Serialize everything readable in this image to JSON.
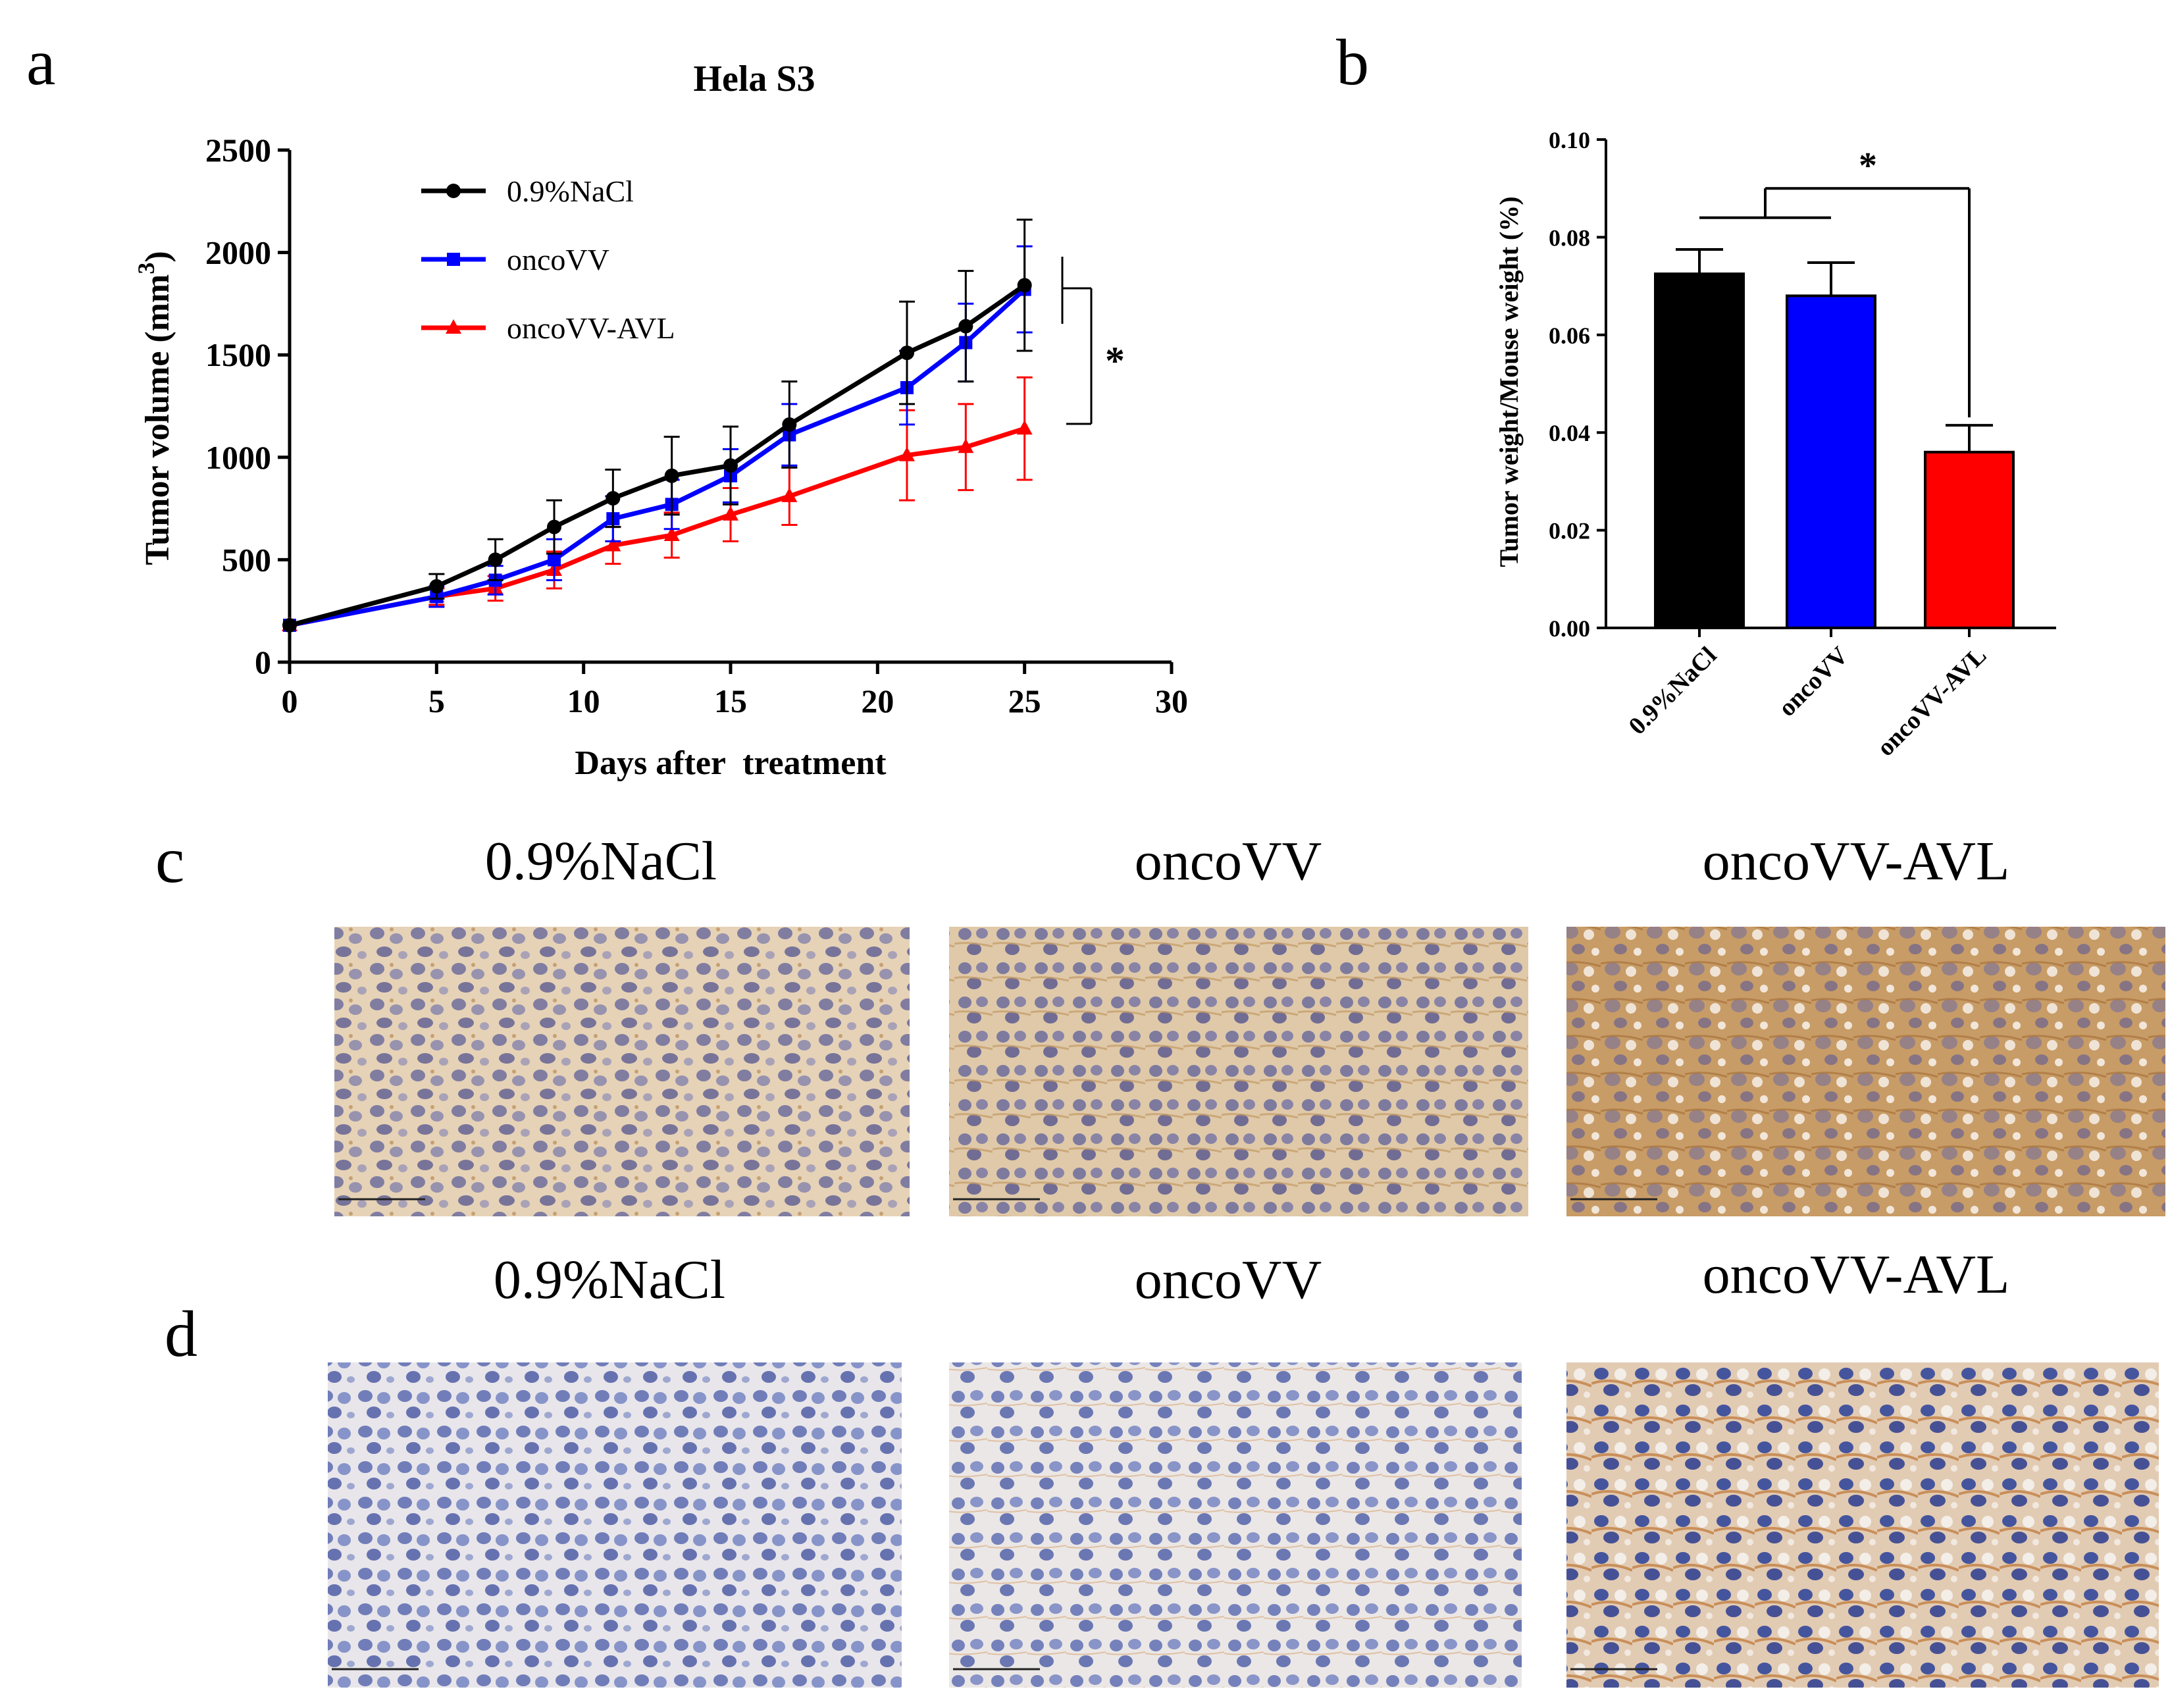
{
  "panels": {
    "a": "a",
    "b": "b",
    "c": "c",
    "d": "d"
  },
  "colors": {
    "black": "#000000",
    "blue": "#0000ff",
    "red": "#ff0000"
  },
  "chart_data": [
    {
      "type": "line",
      "panel": "a",
      "title": "Hela S3",
      "xlabel": "Days after  treatment",
      "ylabel": "Tumor volume (mm",
      "ylabel_sup": "3",
      "ylabel_close": ")",
      "xlim": [
        0,
        30
      ],
      "ylim": [
        0,
        2500
      ],
      "xticks": [
        "0",
        "5",
        "10",
        "15",
        "20",
        "25",
        "30"
      ],
      "yticks": [
        "0",
        "500",
        "1000",
        "1500",
        "2000",
        "2500"
      ],
      "x": [
        0,
        5,
        7,
        9,
        11,
        13,
        15,
        17,
        21,
        23,
        25
      ],
      "series": [
        {
          "name": "0.9%NaCl",
          "color": "#000000",
          "marker": "circle",
          "values": [
            180,
            370,
            500,
            660,
            800,
            910,
            960,
            1160,
            1510,
            1640,
            1840
          ],
          "errors": [
            0,
            60,
            100,
            130,
            140,
            190,
            190,
            210,
            250,
            270,
            320
          ]
        },
        {
          "name": "oncoVV",
          "color": "#0000ff",
          "marker": "square",
          "values": [
            180,
            320,
            400,
            500,
            700,
            770,
            910,
            1110,
            1340,
            1560,
            1820
          ],
          "errors": [
            0,
            50,
            70,
            100,
            110,
            120,
            130,
            150,
            180,
            190,
            210
          ]
        },
        {
          "name": "oncoVV-AVL",
          "color": "#ff0000",
          "marker": "triangle",
          "values": [
            180,
            320,
            360,
            450,
            570,
            620,
            720,
            810,
            1010,
            1050,
            1140
          ],
          "errors": [
            0,
            40,
            60,
            90,
            90,
            110,
            130,
            140,
            220,
            210,
            250
          ]
        }
      ],
      "legend_position": "top-left",
      "significance": "*"
    },
    {
      "type": "bar",
      "panel": "b",
      "ylabel": "Tumor weight/Mouse weight (%)",
      "ylim": [
        0,
        0.1
      ],
      "yticks": [
        "0.00",
        "0.02",
        "0.04",
        "0.06",
        "0.08",
        "0.10"
      ],
      "categories": [
        "0.9%NaCl",
        "oncoVV",
        "oncoVV-AVL"
      ],
      "values": [
        0.0725,
        0.068,
        0.036
      ],
      "errors": [
        0.005,
        0.0068,
        0.0055
      ],
      "colors": [
        "#000000",
        "#0000ff",
        "#ff0000"
      ],
      "significance": "*"
    }
  ],
  "micrographs": {
    "row_c": [
      "0.9%NaCl",
      "oncoVV",
      "oncoVV-AVL"
    ],
    "row_d": [
      "0.9%NaCl",
      "oncoVV",
      "oncoVV-AVL"
    ]
  }
}
